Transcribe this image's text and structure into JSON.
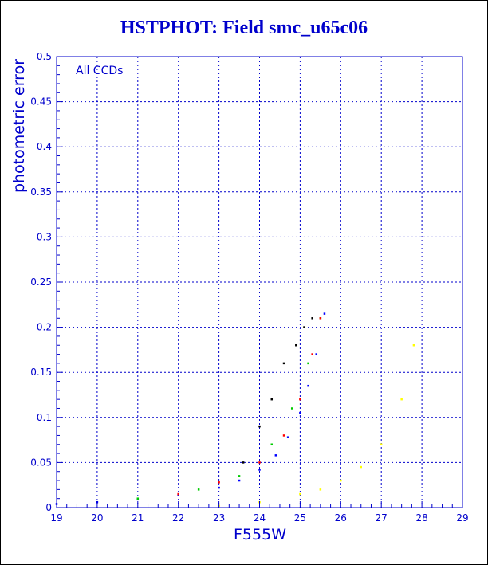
{
  "chart_data": {
    "type": "scatter",
    "title": "HSTPHOT: Field smc_u65c06",
    "xlabel": "F555W",
    "ylabel": "photometric error",
    "annotation": "All CCDs",
    "xlim": [
      19,
      29
    ],
    "ylim": [
      0,
      0.5
    ],
    "x_ticks": [
      "19",
      "20",
      "21",
      "22",
      "23",
      "24",
      "25",
      "26",
      "27",
      "28",
      "29"
    ],
    "y_ticks": [
      "0",
      "0.05",
      "0.1",
      "0.15",
      "0.2",
      "0.25",
      "0.3",
      "0.35",
      "0.4",
      "0.45",
      "0.5"
    ],
    "grid": true,
    "axis_color": "#0000cc",
    "series": [
      {
        "color": "#000000",
        "x": [
          23.6,
          24.0,
          24.3,
          24.6,
          24.9,
          25.1,
          25.3
        ],
        "y": [
          0.05,
          0.09,
          0.12,
          0.16,
          0.18,
          0.2,
          0.21
        ]
      },
      {
        "color": "#ff0000",
        "x": [
          22.0,
          23.0,
          24.0,
          24.6,
          25.0,
          25.3,
          25.5
        ],
        "y": [
          0.015,
          0.028,
          0.05,
          0.08,
          0.12,
          0.17,
          0.21
        ]
      },
      {
        "color": "#00cc00",
        "x": [
          21.0,
          22.5,
          23.5,
          24.3,
          24.8,
          25.2,
          25.5
        ],
        "y": [
          0.01,
          0.02,
          0.035,
          0.07,
          0.11,
          0.16,
          0.21
        ]
      },
      {
        "color": "#0000ff",
        "x": [
          19.0,
          20.0,
          21.0,
          22.0,
          23.0,
          23.5,
          24.0,
          24.4,
          24.7,
          25.0,
          25.2,
          25.4,
          25.6
        ],
        "y": [
          0.004,
          0.006,
          0.009,
          0.014,
          0.022,
          0.03,
          0.042,
          0.058,
          0.078,
          0.105,
          0.135,
          0.17,
          0.215
        ]
      },
      {
        "color": "#ffff00",
        "x": [
          23.0,
          24.0,
          25.0,
          25.5,
          26.0,
          26.5,
          27.0,
          27.5,
          27.8
        ],
        "y": [
          0.002,
          0.006,
          0.015,
          0.02,
          0.03,
          0.045,
          0.07,
          0.12,
          0.18
        ]
      }
    ]
  }
}
